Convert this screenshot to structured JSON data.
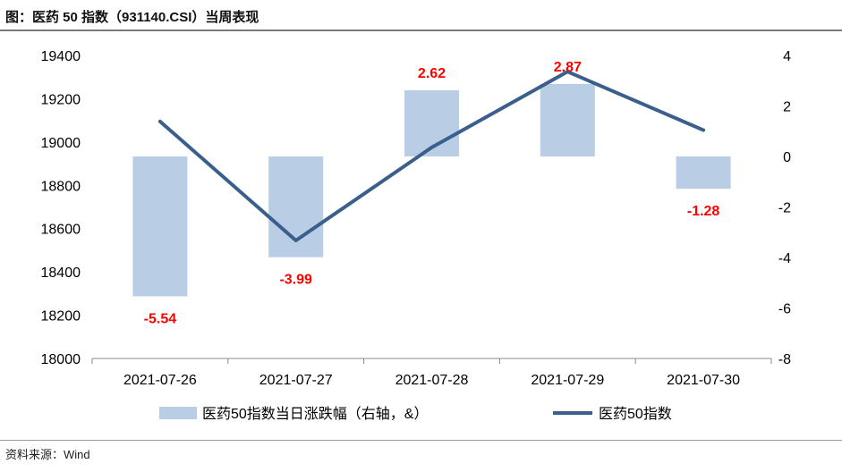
{
  "title": "图：医药 50 指数（931140.CSI）当周表现",
  "source": "资料来源：Wind",
  "chart_data": {
    "type": "bar+line",
    "categories": [
      "2021-07-26",
      "2021-07-27",
      "2021-07-28",
      "2021-07-29",
      "2021-07-30"
    ],
    "bar_series": {
      "name": "医药50指数当日涨跌幅（右轴，&）",
      "values": [
        -5.54,
        -3.99,
        2.62,
        2.87,
        -1.28
      ],
      "axis": "right",
      "color": "#b9cde5"
    },
    "line_series": {
      "name": "医药50指数",
      "values": [
        19095,
        18545,
        18975,
        19325,
        19055
      ],
      "axis": "left",
      "color": "#3b5f8c"
    },
    "left_axis": {
      "ylim": [
        18000,
        19400
      ],
      "ticks": [
        18000,
        18200,
        18400,
        18600,
        18800,
        19000,
        19200,
        19400
      ]
    },
    "right_axis": {
      "ylim": [
        -8,
        4
      ],
      "ticks": [
        -8,
        -6,
        -4,
        -2,
        0,
        2,
        4
      ]
    },
    "data_label_color": "#ff0000",
    "legend_position": "bottom",
    "grid": false
  }
}
